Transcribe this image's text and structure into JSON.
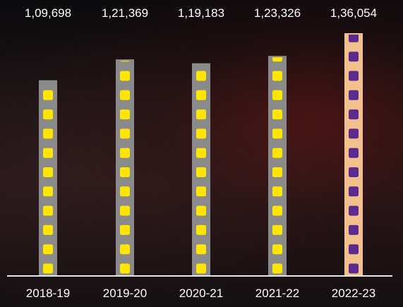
{
  "chart_data": {
    "type": "bar",
    "categories": [
      "2018-19",
      "2019-20",
      "2020-21",
      "2021-22",
      "2022-23"
    ],
    "values": [
      109698,
      121369,
      119183,
      123326,
      136054
    ],
    "value_labels": [
      "1,09,698",
      "1,21,369",
      "1,19,183",
      "1,23,326",
      "1,36,054"
    ],
    "ylim": [
      0,
      140000
    ],
    "title": "",
    "xlabel": "",
    "ylabel": "",
    "grid": false,
    "legend": "none",
    "highlight_index": 4
  },
  "colors": {
    "bar_strip": "#8a8a8a",
    "bar_square": "#ffe600",
    "highlight_strip": "#f2c08c",
    "highlight_square": "#5b2a8c",
    "baseline": "#e6e6e6",
    "label_text": "#ffffff"
  }
}
